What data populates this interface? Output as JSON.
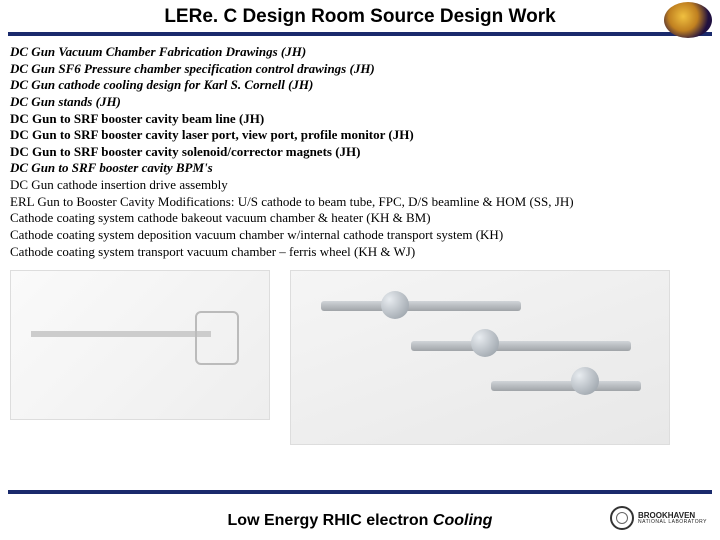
{
  "header": {
    "title": "LERe. C Design Room Source Design Work"
  },
  "lines": [
    {
      "text": "DC Gun Vacuum Chamber Fabrication Drawings (JH)",
      "style": "bi"
    },
    {
      "text": "DC Gun SF6 Pressure chamber specification control drawings (JH)",
      "style": "bi"
    },
    {
      "text": "DC Gun cathode cooling design for Karl S. Cornell (JH)",
      "style": "bi"
    },
    {
      "text": "DC Gun stands (JH)",
      "style": "bi"
    },
    {
      "text": "DC Gun to SRF booster cavity beam line (JH)",
      "style": "b"
    },
    {
      "text": "DC Gun to SRF booster cavity laser port, view port, profile monitor (JH)",
      "style": "b"
    },
    {
      "text": "DC Gun to SRF booster cavity solenoid/corrector magnets (JH)",
      "style": "b"
    },
    {
      "text": "DC Gun to SRF booster cavity BPM's",
      "style": "bi"
    },
    {
      "text": "DC Gun cathode insertion drive assembly",
      "style": ""
    },
    {
      "text": "ERL Gun to Booster Cavity Modifications: U/S cathode to beam tube, FPC, D/S beamline & HOM (SS, JH)",
      "style": ""
    },
    {
      "text": "Cathode coating system cathode bakeout vacuum chamber & heater (KH & BM)",
      "style": ""
    },
    {
      "text": "Cathode coating system deposition vacuum chamber w/internal cathode transport system (KH)",
      "style": ""
    },
    {
      "text": "Cathode coating system transport vacuum chamber – ferris wheel (KH & WJ)",
      "style": ""
    }
  ],
  "footer": {
    "prefix": "Low Energy RHIC electron ",
    "suffix": "Cooling",
    "logo_main": "BROOKHAVEN",
    "logo_sub": "NATIONAL LABORATORY"
  },
  "colors": {
    "rule": "#1a2a6c",
    "text": "#000000",
    "bg": "#ffffff"
  }
}
